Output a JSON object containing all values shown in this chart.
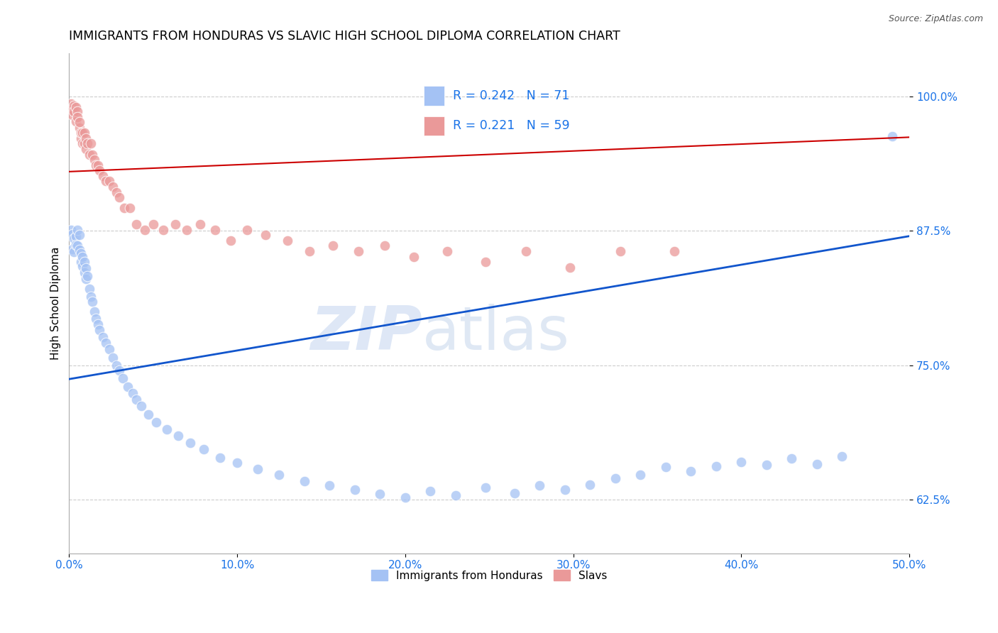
{
  "title": "IMMIGRANTS FROM HONDURAS VS SLAVIC HIGH SCHOOL DIPLOMA CORRELATION CHART",
  "source": "Source: ZipAtlas.com",
  "ylabel": "High School Diploma",
  "ytick_labels": [
    "62.5%",
    "75.0%",
    "87.5%",
    "100.0%"
  ],
  "ytick_values": [
    0.625,
    0.75,
    0.875,
    1.0
  ],
  "xtick_values": [
    0.0,
    0.1,
    0.2,
    0.3,
    0.4,
    0.5
  ],
  "xtick_labels": [
    "0.0%",
    "10.0%",
    "20.0%",
    "30.0%",
    "40.0%",
    "50.0%"
  ],
  "xlim": [
    0.0,
    0.5
  ],
  "ylim": [
    0.575,
    1.04
  ],
  "legend_blue_r": "0.242",
  "legend_blue_n": "71",
  "legend_pink_r": "0.221",
  "legend_pink_n": "59",
  "legend_label_blue": "Immigrants from Honduras",
  "legend_label_pink": "Slavs",
  "blue_color": "#a4c2f4",
  "pink_color": "#ea9999",
  "blue_line_color": "#1155cc",
  "pink_line_color": "#cc0000",
  "watermark_zip": "ZIP",
  "watermark_atlas": "atlas",
  "blue_scatter_x": [
    0.001,
    0.002,
    0.002,
    0.003,
    0.003,
    0.004,
    0.004,
    0.005,
    0.005,
    0.006,
    0.006,
    0.007,
    0.007,
    0.008,
    0.008,
    0.009,
    0.009,
    0.01,
    0.01,
    0.011,
    0.012,
    0.013,
    0.014,
    0.015,
    0.016,
    0.017,
    0.018,
    0.02,
    0.022,
    0.024,
    0.026,
    0.028,
    0.03,
    0.032,
    0.035,
    0.038,
    0.04,
    0.043,
    0.047,
    0.052,
    0.058,
    0.065,
    0.072,
    0.08,
    0.09,
    0.1,
    0.112,
    0.125,
    0.14,
    0.155,
    0.17,
    0.185,
    0.2,
    0.215,
    0.23,
    0.248,
    0.265,
    0.28,
    0.295,
    0.31,
    0.325,
    0.34,
    0.355,
    0.37,
    0.385,
    0.4,
    0.415,
    0.43,
    0.445,
    0.46,
    0.49
  ],
  "blue_scatter_y": [
    0.876,
    0.872,
    0.858,
    0.868,
    0.855,
    0.87,
    0.862,
    0.876,
    0.861,
    0.871,
    0.857,
    0.854,
    0.846,
    0.842,
    0.851,
    0.846,
    0.836,
    0.84,
    0.83,
    0.833,
    0.821,
    0.814,
    0.809,
    0.8,
    0.793,
    0.788,
    0.783,
    0.776,
    0.771,
    0.765,
    0.757,
    0.75,
    0.745,
    0.738,
    0.73,
    0.724,
    0.718,
    0.712,
    0.704,
    0.697,
    0.69,
    0.684,
    0.678,
    0.672,
    0.664,
    0.659,
    0.653,
    0.648,
    0.642,
    0.638,
    0.634,
    0.63,
    0.627,
    0.633,
    0.629,
    0.636,
    0.631,
    0.638,
    0.634,
    0.639,
    0.645,
    0.648,
    0.655,
    0.651,
    0.656,
    0.66,
    0.657,
    0.663,
    0.658,
    0.665,
    0.963
  ],
  "pink_scatter_x": [
    0.001,
    0.001,
    0.002,
    0.002,
    0.003,
    0.003,
    0.004,
    0.004,
    0.005,
    0.005,
    0.006,
    0.006,
    0.007,
    0.007,
    0.008,
    0.008,
    0.009,
    0.009,
    0.01,
    0.01,
    0.011,
    0.012,
    0.013,
    0.014,
    0.015,
    0.016,
    0.017,
    0.018,
    0.02,
    0.022,
    0.024,
    0.026,
    0.028,
    0.03,
    0.033,
    0.036,
    0.04,
    0.045,
    0.05,
    0.056,
    0.063,
    0.07,
    0.078,
    0.087,
    0.096,
    0.106,
    0.117,
    0.13,
    0.143,
    0.157,
    0.172,
    0.188,
    0.205,
    0.225,
    0.248,
    0.272,
    0.298,
    0.328,
    0.36
  ],
  "pink_scatter_y": [
    0.993,
    0.987,
    0.988,
    0.983,
    0.991,
    0.986,
    0.99,
    0.977,
    0.986,
    0.981,
    0.971,
    0.976,
    0.961,
    0.966,
    0.956,
    0.966,
    0.956,
    0.966,
    0.961,
    0.951,
    0.956,
    0.946,
    0.956,
    0.946,
    0.941,
    0.936,
    0.936,
    0.931,
    0.926,
    0.921,
    0.921,
    0.916,
    0.911,
    0.906,
    0.896,
    0.896,
    0.881,
    0.876,
    0.881,
    0.876,
    0.881,
    0.876,
    0.881,
    0.876,
    0.866,
    0.876,
    0.871,
    0.866,
    0.856,
    0.861,
    0.856,
    0.861,
    0.851,
    0.856,
    0.846,
    0.856,
    0.841,
    0.856,
    0.856
  ],
  "blue_line_x": [
    0.0,
    0.5
  ],
  "blue_line_y": [
    0.737,
    0.87
  ],
  "pink_line_x": [
    0.0,
    0.5
  ],
  "pink_line_y": [
    0.93,
    0.962
  ]
}
